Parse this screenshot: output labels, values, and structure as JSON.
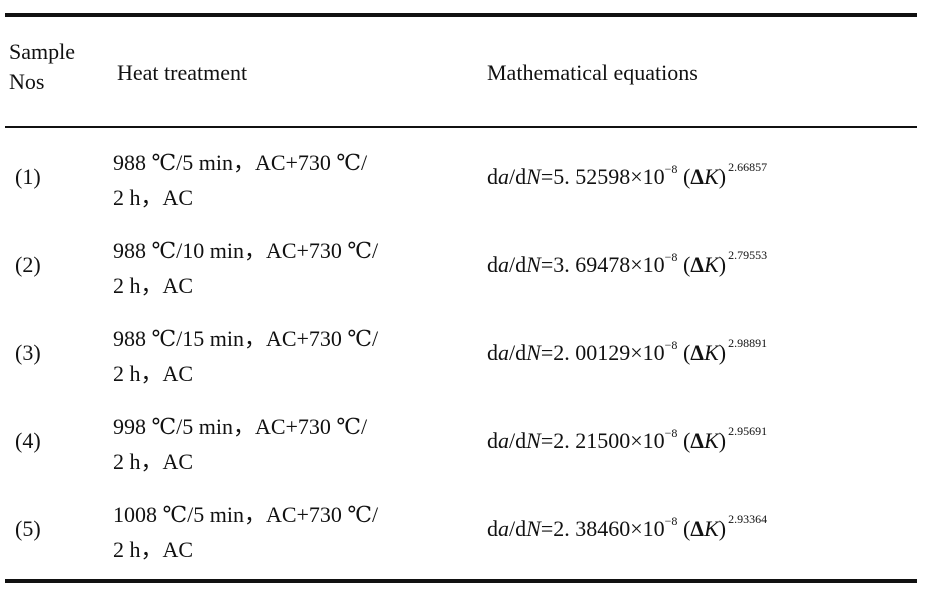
{
  "table": {
    "headers": {
      "sample_line1": "Sample",
      "sample_line2": "Nos",
      "heat": "Heat treatment",
      "equation": "Mathematical equations"
    },
    "rows": [
      {
        "sample": "(1)",
        "heat_line1": "988 ℃/5 min，AC+730 ℃/",
        "heat_line2": "2 h，AC",
        "coef": "5. 52598",
        "exponent": "2.66857"
      },
      {
        "sample": "(2)",
        "heat_line1": "988 ℃/10 min，AC+730 ℃/",
        "heat_line2": "2 h，AC",
        "coef": "3. 69478",
        "exponent": "2.79553"
      },
      {
        "sample": "(3)",
        "heat_line1": "988 ℃/15 min，AC+730 ℃/",
        "heat_line2": "2 h，AC",
        "coef": "2. 00129",
        "exponent": "2.98891"
      },
      {
        "sample": "(4)",
        "heat_line1": "998 ℃/5 min，AC+730 ℃/",
        "heat_line2": "2 h，AC",
        "coef": "2. 21500",
        "exponent": "2.95691"
      },
      {
        "sample": "(5)",
        "heat_line1": "1008 ℃/5 min，AC+730 ℃/",
        "heat_line2": "2 h，AC",
        "coef": "2. 38460",
        "exponent": "2.93364"
      }
    ]
  }
}
